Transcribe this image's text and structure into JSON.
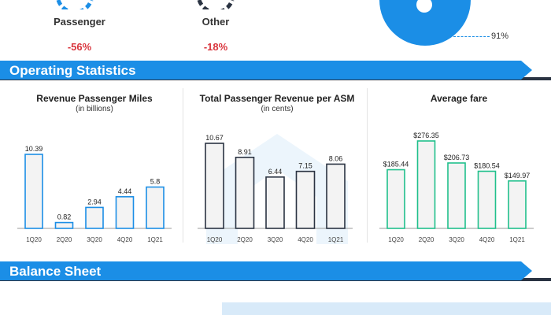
{
  "kpis": [
    {
      "label": "Passenger",
      "value": "-56%"
    },
    {
      "label": "Other",
      "value": "-18%"
    }
  ],
  "pie": {
    "label": "91%",
    "color": "#1b8ee6"
  },
  "sections": {
    "operating": "Operating Statistics",
    "balance": "Balance Sheet"
  },
  "colors": {
    "accent": "#1b8ee6",
    "negative": "#d9363e",
    "teal": "#20c08c",
    "dark": "#2a3342"
  },
  "chart_data": [
    {
      "type": "bar",
      "title": "Revenue Passenger Miles",
      "subtitle": "(in billions)",
      "categories": [
        "1Q20",
        "2Q20",
        "3Q20",
        "4Q20",
        "1Q21"
      ],
      "values": [
        10.39,
        0.82,
        2.94,
        4.44,
        5.8
      ],
      "value_labels": [
        "10.39",
        "0.82",
        "2.94",
        "4.44",
        "5.8"
      ],
      "bar_color": "#1b8ee6",
      "ylim": [
        0,
        10.39
      ],
      "grid": false
    },
    {
      "type": "bar",
      "title": "Total Passenger Revenue per ASM",
      "subtitle": "(in cents)",
      "categories": [
        "1Q20",
        "2Q20",
        "3Q20",
        "4Q20",
        "1Q21"
      ],
      "values": [
        10.67,
        8.91,
        6.44,
        7.15,
        8.06
      ],
      "value_labels": [
        "10.67",
        "8.91",
        "6.44",
        "7.15",
        "8.06"
      ],
      "bar_color": "#2a3342",
      "ylim": [
        0,
        10.67
      ],
      "grid": false
    },
    {
      "type": "bar",
      "title": "Average fare",
      "subtitle": "",
      "categories": [
        "1Q20",
        "2Q20",
        "3Q20",
        "4Q20",
        "1Q21"
      ],
      "values": [
        185.44,
        276.35,
        206.73,
        180.54,
        149.97
      ],
      "value_labels": [
        "$185.44",
        "$276.35",
        "$206.73",
        "$180.54",
        "$149.97"
      ],
      "bar_color": "#20c08c",
      "ylim": [
        0,
        276.35
      ],
      "grid": false
    }
  ]
}
